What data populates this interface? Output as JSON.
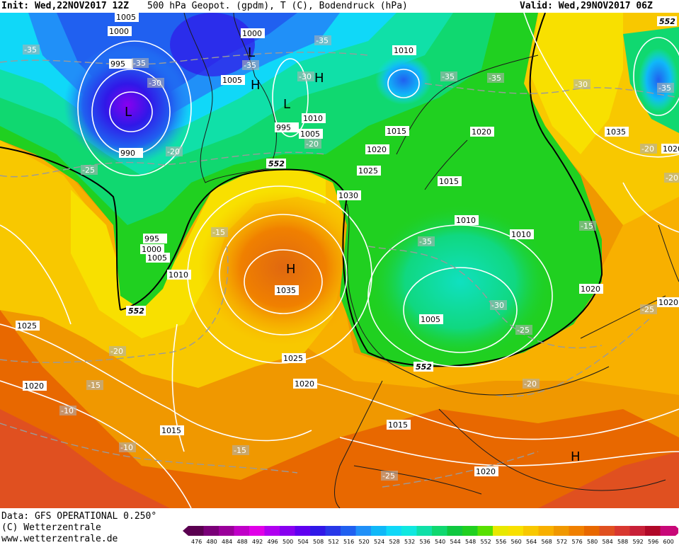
{
  "header": {
    "init": "Init: Wed,22NOV2017 12Z",
    "title": "500 hPa Geopot. (gpdm), T (C), Bodendruck (hPa)",
    "valid": "Valid: Wed,29NOV2017 06Z"
  },
  "footer": {
    "data_line": "Data: GFS OPERATIONAL 0.250°",
    "copyright_line": "(C) Wetterzentrale",
    "url_line": "www.wetterzentrale.de"
  },
  "scale": {
    "values": [
      "476",
      "480",
      "484",
      "488",
      "492",
      "496",
      "500",
      "504",
      "508",
      "512",
      "516",
      "520",
      "524",
      "528",
      "532",
      "536",
      "540",
      "544",
      "548",
      "552",
      "556",
      "560",
      "564",
      "568",
      "572",
      "576",
      "580",
      "584",
      "588",
      "592",
      "596",
      "600"
    ],
    "colors": [
      "#5a0050",
      "#7a0078",
      "#9a009a",
      "#c000c8",
      "#e000e8",
      "#b000f0",
      "#8800f0",
      "#6000f0",
      "#3018e8",
      "#2838e8",
      "#2060f0",
      "#2090f8",
      "#10b8f8",
      "#10d8f8",
      "#10e8e0",
      "#10e0a8",
      "#10d870",
      "#10c840",
      "#20d020",
      "#58e000",
      "#e8e800",
      "#f8e000",
      "#f8c800",
      "#f8b000",
      "#f09800",
      "#f08000",
      "#e86800",
      "#e05020",
      "#d83830",
      "#c82038",
      "#b00828",
      "#c80878"
    ]
  },
  "map_labels": {
    "pressure": [
      {
        "text": "1005"
      },
      {
        "text": "1000"
      },
      {
        "text": "995"
      },
      {
        "text": "990"
      },
      {
        "text": "1000"
      },
      {
        "text": "1005"
      },
      {
        "text": "1010"
      },
      {
        "text": "995"
      },
      {
        "text": "1005"
      },
      {
        "text": "1010"
      },
      {
        "text": "1015"
      },
      {
        "text": "1020"
      },
      {
        "text": "1020"
      },
      {
        "text": "1025"
      },
      {
        "text": "1030"
      },
      {
        "text": "1035"
      },
      {
        "text": "995"
      },
      {
        "text": "1000"
      },
      {
        "text": "1005"
      },
      {
        "text": "1010"
      },
      {
        "text": "1015"
      },
      {
        "text": "1010"
      },
      {
        "text": "1010"
      },
      {
        "text": "1005"
      },
      {
        "text": "1020"
      },
      {
        "text": "1025"
      },
      {
        "text": "1020"
      },
      {
        "text": "1025"
      },
      {
        "text": "1020"
      },
      {
        "text": "1015"
      },
      {
        "text": "1015"
      },
      {
        "text": "1020"
      },
      {
        "text": "1035"
      },
      {
        "text": "1020"
      },
      {
        "text": "1020"
      }
    ],
    "temperature": [
      {
        "text": "-35"
      },
      {
        "text": "-35"
      },
      {
        "text": "-30"
      },
      {
        "text": "-35"
      },
      {
        "text": "-35"
      },
      {
        "text": "-35"
      },
      {
        "text": "-35"
      },
      {
        "text": "-25"
      },
      {
        "text": "-20"
      },
      {
        "text": "-20"
      },
      {
        "text": "-15"
      },
      {
        "text": "-35"
      },
      {
        "text": "-30"
      },
      {
        "text": "-25"
      },
      {
        "text": "-20"
      },
      {
        "text": "-15"
      },
      {
        "text": "-10"
      },
      {
        "text": "-10"
      },
      {
        "text": "-15"
      },
      {
        "text": "-15"
      },
      {
        "text": "-20"
      },
      {
        "text": "-25"
      },
      {
        "text": "-30"
      },
      {
        "text": "-25"
      },
      {
        "text": "-20"
      },
      {
        "text": "-20"
      },
      {
        "text": "-35"
      },
      {
        "text": "-30"
      }
    ],
    "geopot": [
      {
        "text": "552"
      },
      {
        "text": "552"
      },
      {
        "text": "552"
      },
      {
        "text": "552"
      }
    ],
    "centers": [
      {
        "text": "L"
      },
      {
        "text": "L"
      },
      {
        "text": "H"
      },
      {
        "text": "L"
      },
      {
        "text": "H"
      },
      {
        "text": "H"
      },
      {
        "text": "H"
      }
    ]
  }
}
